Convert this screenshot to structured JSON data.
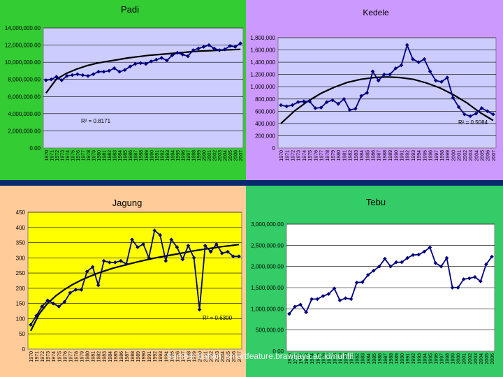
{
  "footer": "Sumber bahan: smartfeature.brawijaya.ac.id/nuhfil",
  "colors": {
    "page_bg": "#0a2a6e",
    "padi_bg": "#33cc33",
    "kedele_bg": "#cc99ff",
    "jagung_bg": "#ffcc99",
    "tebu_bg": "#33cc66",
    "plot_bg": "#ccccff",
    "jagung_plot_bg": "#ffff00",
    "series": "#000080",
    "trend": "#000000"
  },
  "chart_data": [
    {
      "id": "padi",
      "type": "line",
      "title": "Padi",
      "x": [
        "1970",
        "1971",
        "1972",
        "1973",
        "1974",
        "1975",
        "1976",
        "1977",
        "1978",
        "1979",
        "1980",
        "1981",
        "1982",
        "1983",
        "1984",
        "1985",
        "1986",
        "1987",
        "1988",
        "1989",
        "1990",
        "1991",
        "1992",
        "1993",
        "1994",
        "1995",
        "1996",
        "1997",
        "1998",
        "1999",
        "2000",
        "2001",
        "2002",
        "2003",
        "2004",
        "2005",
        "2006",
        "2007"
      ],
      "values": [
        7900000,
        8000000,
        8300000,
        7900000,
        8400000,
        8500000,
        8600000,
        8500000,
        8400000,
        8600000,
        8900000,
        8900000,
        9000000,
        9300000,
        8900000,
        9100000,
        9500000,
        9800000,
        9900000,
        9800000,
        10100000,
        10300000,
        10500000,
        10200000,
        10800000,
        11100000,
        10900000,
        10700000,
        11400000,
        11600000,
        11800000,
        12000000,
        11600000,
        11400000,
        11500000,
        11900000,
        11800000,
        12200000
      ],
      "trend": "logarithmic",
      "trend_values": [
        6400000,
        8000000,
        8700000,
        9200000,
        9600000,
        9900000,
        10100000,
        10300000,
        10500000,
        10650000,
        10800000,
        10900000,
        11000000,
        11100000,
        11200000,
        11300000,
        11350000,
        11400000,
        11450000,
        11500000
      ],
      "r2": "R² = 0.8171",
      "ylim": [
        0,
        14000000
      ],
      "yticks": [
        "0.00",
        "2,000,000.00",
        "4,000,000.00",
        "6,000,000.00",
        "8,000,000.00",
        "10,000,000.00",
        "12,000,000.00",
        "14,000,000.00"
      ]
    },
    {
      "id": "kedele",
      "type": "line",
      "title": "Kedele",
      "x": [
        "1970",
        "1971",
        "1972",
        "1973",
        "1974",
        "1975",
        "1976",
        "1977",
        "1978",
        "1979",
        "1980",
        "1981",
        "1982",
        "1983",
        "1984",
        "1985",
        "1986",
        "1987",
        "1988",
        "1989",
        "1990",
        "1991",
        "1992",
        "1993",
        "1994",
        "1995",
        "1996",
        "1997",
        "1998",
        "1999",
        "2000",
        "2001",
        "2002",
        "2003",
        "2004",
        "2005",
        "2006",
        "2007"
      ],
      "values": [
        700000,
        680000,
        700000,
        750000,
        760000,
        760000,
        650000,
        660000,
        750000,
        780000,
        720000,
        800000,
        620000,
        640000,
        850000,
        900000,
        1250000,
        1100000,
        1200000,
        1200000,
        1300000,
        1350000,
        1680000,
        1450000,
        1400000,
        1450000,
        1250000,
        1100000,
        1080000,
        1150000,
        820000,
        670000,
        550000,
        520000,
        560000,
        650000,
        600000,
        550000
      ],
      "trend": "polynomial",
      "trend_values": [
        400000,
        600000,
        760000,
        890000,
        990000,
        1070000,
        1120000,
        1150000,
        1160000,
        1150000,
        1120000,
        1060000,
        980000,
        870000,
        740000,
        580000,
        450000
      ],
      "r2": "R² = 0.5084",
      "ylim": [
        0,
        1800000
      ],
      "yticks": [
        "0",
        "200,000",
        "400,000",
        "600,000",
        "800,000",
        "1,000,000",
        "1,200,000",
        "1,400,000",
        "1,600,000",
        "1,800,000"
      ]
    },
    {
      "id": "jagung",
      "type": "line",
      "title": "Jagung",
      "x": [
        "1970",
        "1971",
        "1972",
        "1973",
        "1974",
        "1975",
        "1976",
        "1977",
        "1978",
        "1979",
        "1980",
        "1981",
        "1982",
        "1983",
        "1984",
        "1985",
        "1986",
        "1987",
        "1988",
        "1989",
        "1990",
        "1991",
        "1992",
        "1993",
        "1994",
        "1995",
        "1996",
        "1997",
        "1998",
        "1999",
        "2000",
        "2001",
        "2002",
        "2003",
        "2004",
        "2005",
        "2006",
        "2007"
      ],
      "values": [
        80,
        110,
        140,
        160,
        150,
        140,
        155,
        185,
        195,
        195,
        255,
        270,
        210,
        290,
        285,
        285,
        290,
        280,
        360,
        335,
        345,
        300,
        390,
        375,
        290,
        360,
        335,
        295,
        340,
        300,
        130,
        340,
        320,
        345,
        315,
        320,
        305,
        305
      ],
      "trend": "logarithmic",
      "trend_values": [
        60,
        115,
        150,
        175,
        195,
        212,
        226,
        238,
        249,
        258,
        267,
        274,
        281,
        288,
        294,
        300,
        305,
        310,
        315,
        320,
        325,
        329,
        333,
        337,
        340,
        344
      ],
      "r2": "R² = 0.6300",
      "ylim": [
        0,
        450
      ],
      "yticks": [
        "0",
        "50",
        "100",
        "150",
        "200",
        "250",
        "300",
        "350",
        "400",
        "450"
      ]
    },
    {
      "id": "tebu",
      "type": "line",
      "title": "Tebu",
      "x": [
        "1970",
        "1971",
        "1972",
        "1973",
        "1974",
        "1975",
        "1976",
        "1977",
        "1978",
        "1979",
        "1980",
        "1981",
        "1982",
        "1983",
        "1984",
        "1985",
        "1986",
        "1987",
        "1988",
        "1989",
        "1990",
        "1991",
        "1992",
        "1993",
        "1994",
        "1995",
        "1996",
        "1997",
        "1998",
        "1999",
        "2000",
        "2001",
        "2002",
        "2003",
        "2004",
        "2005",
        "2006"
      ],
      "values": [
        880000,
        1050000,
        1100000,
        920000,
        1230000,
        1230000,
        1300000,
        1350000,
        1480000,
        1200000,
        1250000,
        1230000,
        1620000,
        1630000,
        1800000,
        1900000,
        2000000,
        2180000,
        2000000,
        2100000,
        2100000,
        2200000,
        2270000,
        2280000,
        2350000,
        2450000,
        2080000,
        2000000,
        2200000,
        1500000,
        1500000,
        1700000,
        1720000,
        1750000,
        1650000,
        2050000,
        2230000
      ],
      "ylim": [
        0,
        3000000
      ],
      "yticks": [
        "0.00",
        "500,000.00",
        "1,000,000.00",
        "1,500,000.00",
        "2,000,000.00",
        "2,500,000.00",
        "3,000,000.00"
      ]
    }
  ]
}
